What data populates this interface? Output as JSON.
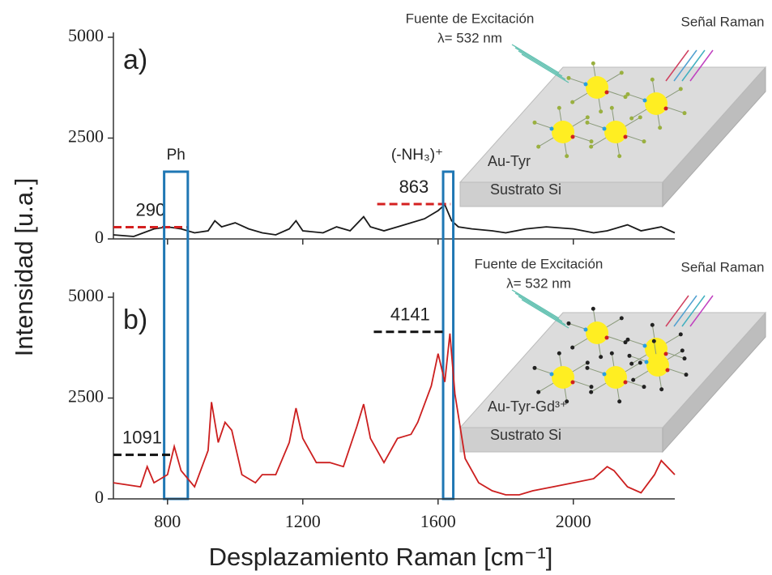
{
  "chart_data": [
    {
      "type": "line",
      "label": "a)",
      "ylabel": "Intensidad [u.a.]",
      "x": [
        640,
        700,
        760,
        800,
        840,
        880,
        920,
        940,
        960,
        1000,
        1040,
        1080,
        1120,
        1160,
        1180,
        1200,
        1260,
        1300,
        1340,
        1380,
        1400,
        1440,
        1480,
        1520,
        1560,
        1600,
        1620,
        1640,
        1660,
        1700,
        1760,
        1800,
        1860,
        1920,
        2000,
        2060,
        2100,
        2160,
        2200,
        2260,
        2300
      ],
      "series": [
        {
          "color": "#1a1a1a",
          "values": [
            100,
            60,
            250,
            300,
            250,
            150,
            200,
            450,
            300,
            400,
            250,
            150,
            100,
            250,
            450,
            200,
            150,
            300,
            200,
            550,
            300,
            200,
            300,
            400,
            500,
            700,
            850,
            450,
            300,
            250,
            200,
            150,
            250,
            300,
            250,
            150,
            200,
            350,
            200,
            300,
            150
          ]
        }
      ],
      "xlim": [
        640,
        2300
      ],
      "ylim": [
        0,
        5000
      ],
      "xticks": [
        800,
        1200,
        1600,
        2000
      ],
      "yticks": [
        0,
        2500,
        5000
      ],
      "reference_lines": [
        {
          "value": 290,
          "color": "#d42020",
          "x": [
            640,
            860
          ]
        },
        {
          "value": 863,
          "color": "#d42020",
          "x": [
            1420,
            1637
          ]
        }
      ],
      "highlights": [
        {
          "label": "Ph",
          "x": [
            790,
            860
          ]
        },
        {
          "label": "(-NH₃)⁺",
          "x": [
            1615,
            1645
          ]
        }
      ],
      "inset": {
        "source": "Fuente de Excitación",
        "wavelength": "λ= 532 nm",
        "signal": "Señal Raman",
        "sample": "Au-Tyr",
        "substrate": "Sustrato Si"
      }
    },
    {
      "type": "line",
      "label": "b)",
      "xlabel": "Desplazamiento Raman [cm⁻¹]",
      "x": [
        640,
        680,
        720,
        740,
        760,
        800,
        820,
        840,
        880,
        920,
        930,
        950,
        970,
        990,
        1020,
        1060,
        1080,
        1120,
        1160,
        1180,
        1200,
        1240,
        1280,
        1320,
        1360,
        1380,
        1400,
        1440,
        1480,
        1520,
        1540,
        1580,
        1600,
        1620,
        1635,
        1650,
        1680,
        1720,
        1760,
        1800,
        1840,
        1880,
        1940,
        2000,
        2060,
        2100,
        2120,
        2160,
        2200,
        2240,
        2260,
        2300
      ],
      "series": [
        {
          "color": "#cc1f1f",
          "values": [
            400,
            350,
            300,
            800,
            400,
            600,
            1300,
            700,
            300,
            1200,
            2400,
            1400,
            1900,
            1700,
            600,
            400,
            600,
            600,
            1400,
            2250,
            1500,
            900,
            900,
            800,
            1800,
            2350,
            1500,
            900,
            1500,
            1600,
            1900,
            2800,
            3600,
            2900,
            4100,
            2600,
            1000,
            400,
            200,
            100,
            100,
            200,
            300,
            400,
            500,
            800,
            700,
            300,
            150,
            600,
            950,
            600
          ]
        }
      ],
      "xlim": [
        640,
        2300
      ],
      "ylim": [
        0,
        5000
      ],
      "xticks": [
        800,
        1200,
        1600,
        2000
      ],
      "yticks": [
        0,
        2500,
        5000
      ],
      "reference_lines": [
        {
          "value": 1091,
          "color": "#111111",
          "x": [
            640,
            810
          ]
        },
        {
          "value": 4141,
          "color": "#111111",
          "x": [
            1410,
            1625
          ]
        }
      ],
      "inset": {
        "source": "Fuente de Excitación",
        "wavelength": "λ= 532 nm",
        "signal": "Señal Raman",
        "sample": "Au-Tyr-Gd³⁺",
        "substrate": "Sustrato Si"
      }
    }
  ]
}
